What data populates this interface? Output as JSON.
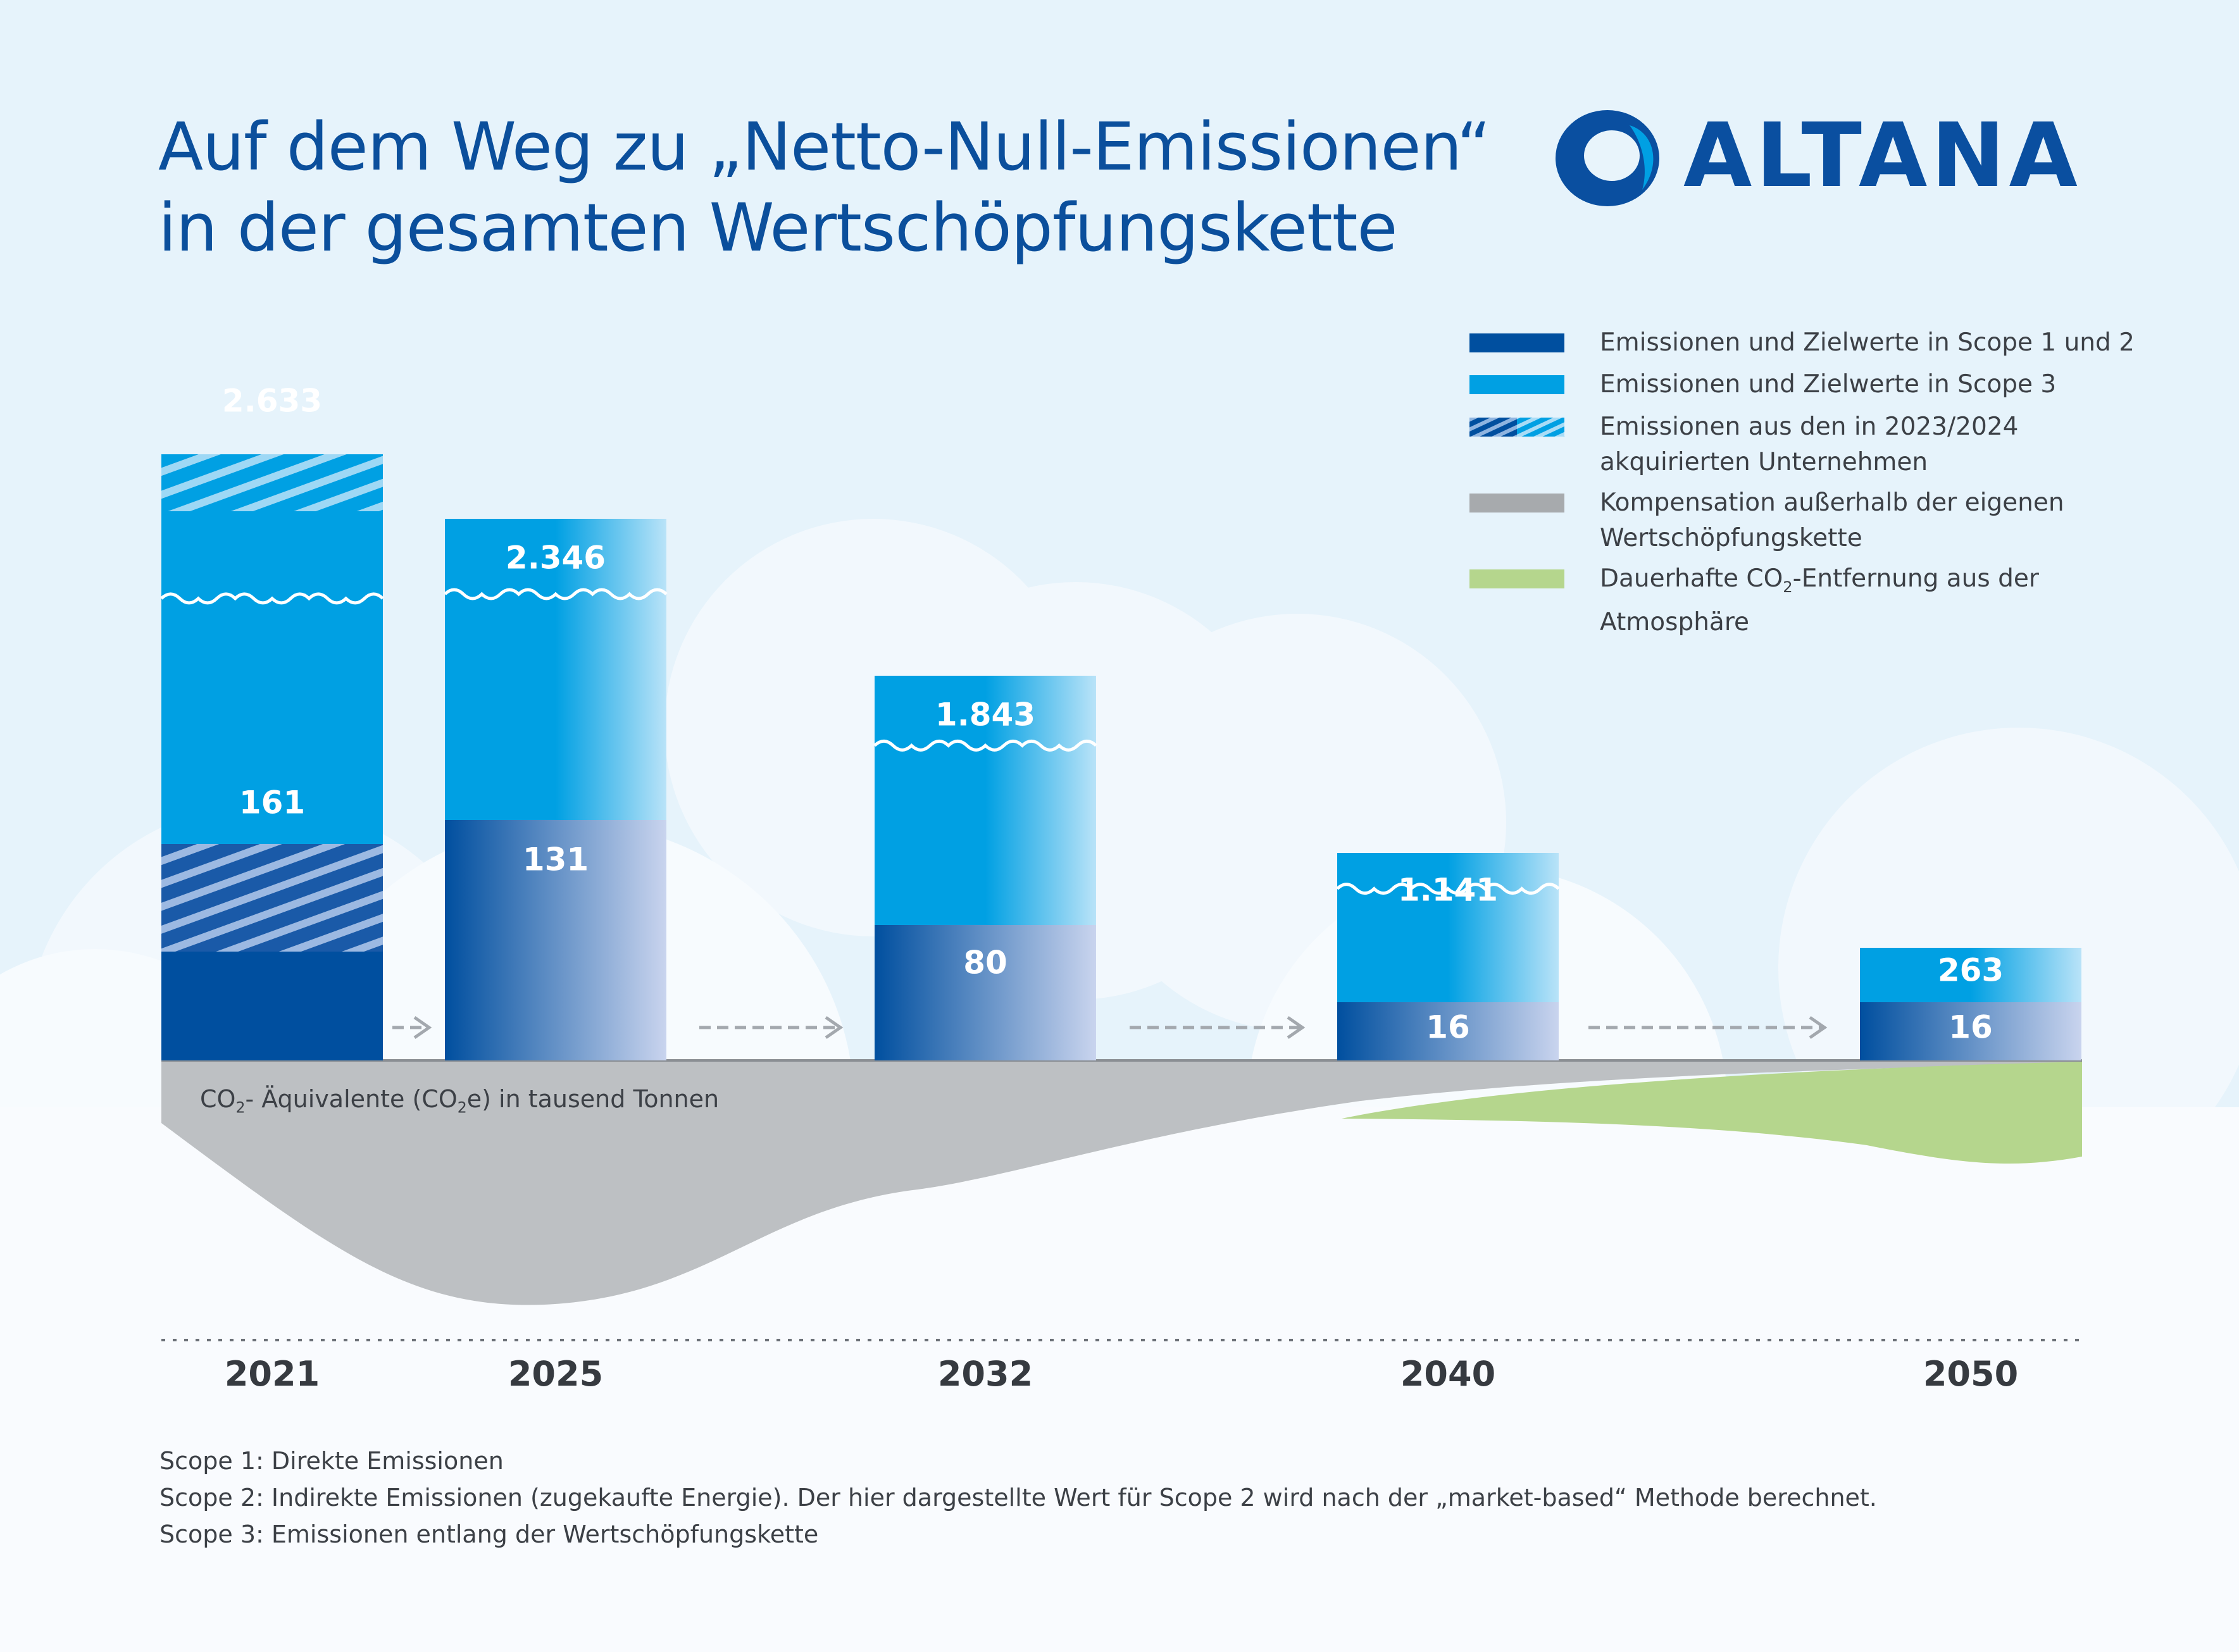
{
  "title": {
    "line1": "Auf dem Weg zu „Netto-Null-Emissionen“",
    "line2": "in der gesamten Wertschöpfungskette"
  },
  "logo": {
    "text": "ALTANA",
    "icon": "altana-ring-logo",
    "color": "#0a4fa0"
  },
  "legend": [
    {
      "key": "scope12",
      "text": "Emissionen und Zielwerte in Scope 1 und 2",
      "color": "#004f9f"
    },
    {
      "key": "scope3",
      "text": "Emissionen und Zielwerte in Scope 3",
      "color": "#00a0e3"
    },
    {
      "key": "acquired",
      "text_line1": "Emissionen aus den in 2023/2024",
      "text_line2": "akquirierten Unternehmen",
      "color": "#6fa8dc"
    },
    {
      "key": "compensation",
      "text_line1": "Kompensation außerhalb der eigenen",
      "text_line2": "Wertschöpfungskette",
      "color": "#a7aaad"
    },
    {
      "key": "removal",
      "text_line1_a": "Dauerhafte CO",
      "text_line1_sub": "2",
      "text_line1_b": "-Entfernung aus der",
      "text_line2": "Atmosphäre",
      "color": "#b5d68d"
    }
  ],
  "unit_note": {
    "a": "CO",
    "sub1": "2",
    "b": "- Äquivalente (CO",
    "sub2": "2",
    "c": "e) in tausend Tonnen"
  },
  "footnotes": [
    "Scope 1: Direkte Emissionen",
    "Scope 2: Indirekte Emissionen (zugekaufte Energie). Der hier dargestellte Wert für Scope 2 wird nach der „market-based“ Methode berechnet.",
    "Scope 3: Emissionen entlang der Wertschöpfungskette"
  ],
  "chart_data": {
    "type": "bar",
    "stacked": true,
    "broken_axis": true,
    "unit": "tausend Tonnen CO2e",
    "categories": [
      "2021",
      "2025",
      "2032",
      "2040",
      "2050"
    ],
    "series": [
      {
        "name": "Emissionen und Zielwerte in Scope 1 und 2",
        "values": [
          null,
          131,
          80,
          16,
          16
        ]
      },
      {
        "name": "Emissionen aus den in 2023/2024 akquirierten Unternehmen",
        "values": [
          161,
          null,
          null,
          null,
          null
        ]
      },
      {
        "name": "Emissionen und Zielwerte in Scope 3",
        "values": [
          2633,
          2346,
          1843,
          1141,
          263
        ]
      }
    ],
    "labels": {
      "scope12": [
        "",
        "131",
        "80",
        "16",
        "16"
      ],
      "acquired": [
        "161",
        "",
        "",
        "",
        ""
      ],
      "scope3": [
        "2.633",
        "2.346",
        "1.843",
        "1.141",
        "263"
      ]
    },
    "below_axis": {
      "compensation": "Kompensation außerhalb der eigenen Wertschöpfungskette",
      "removal": "Dauerhafte CO2-Entfernung aus der Atmosphäre"
    },
    "colors": {
      "scope12": "#004f9f",
      "scope3": "#00a0e3",
      "compensation": "#bdc0c3",
      "removal": "#b5d68d"
    }
  }
}
